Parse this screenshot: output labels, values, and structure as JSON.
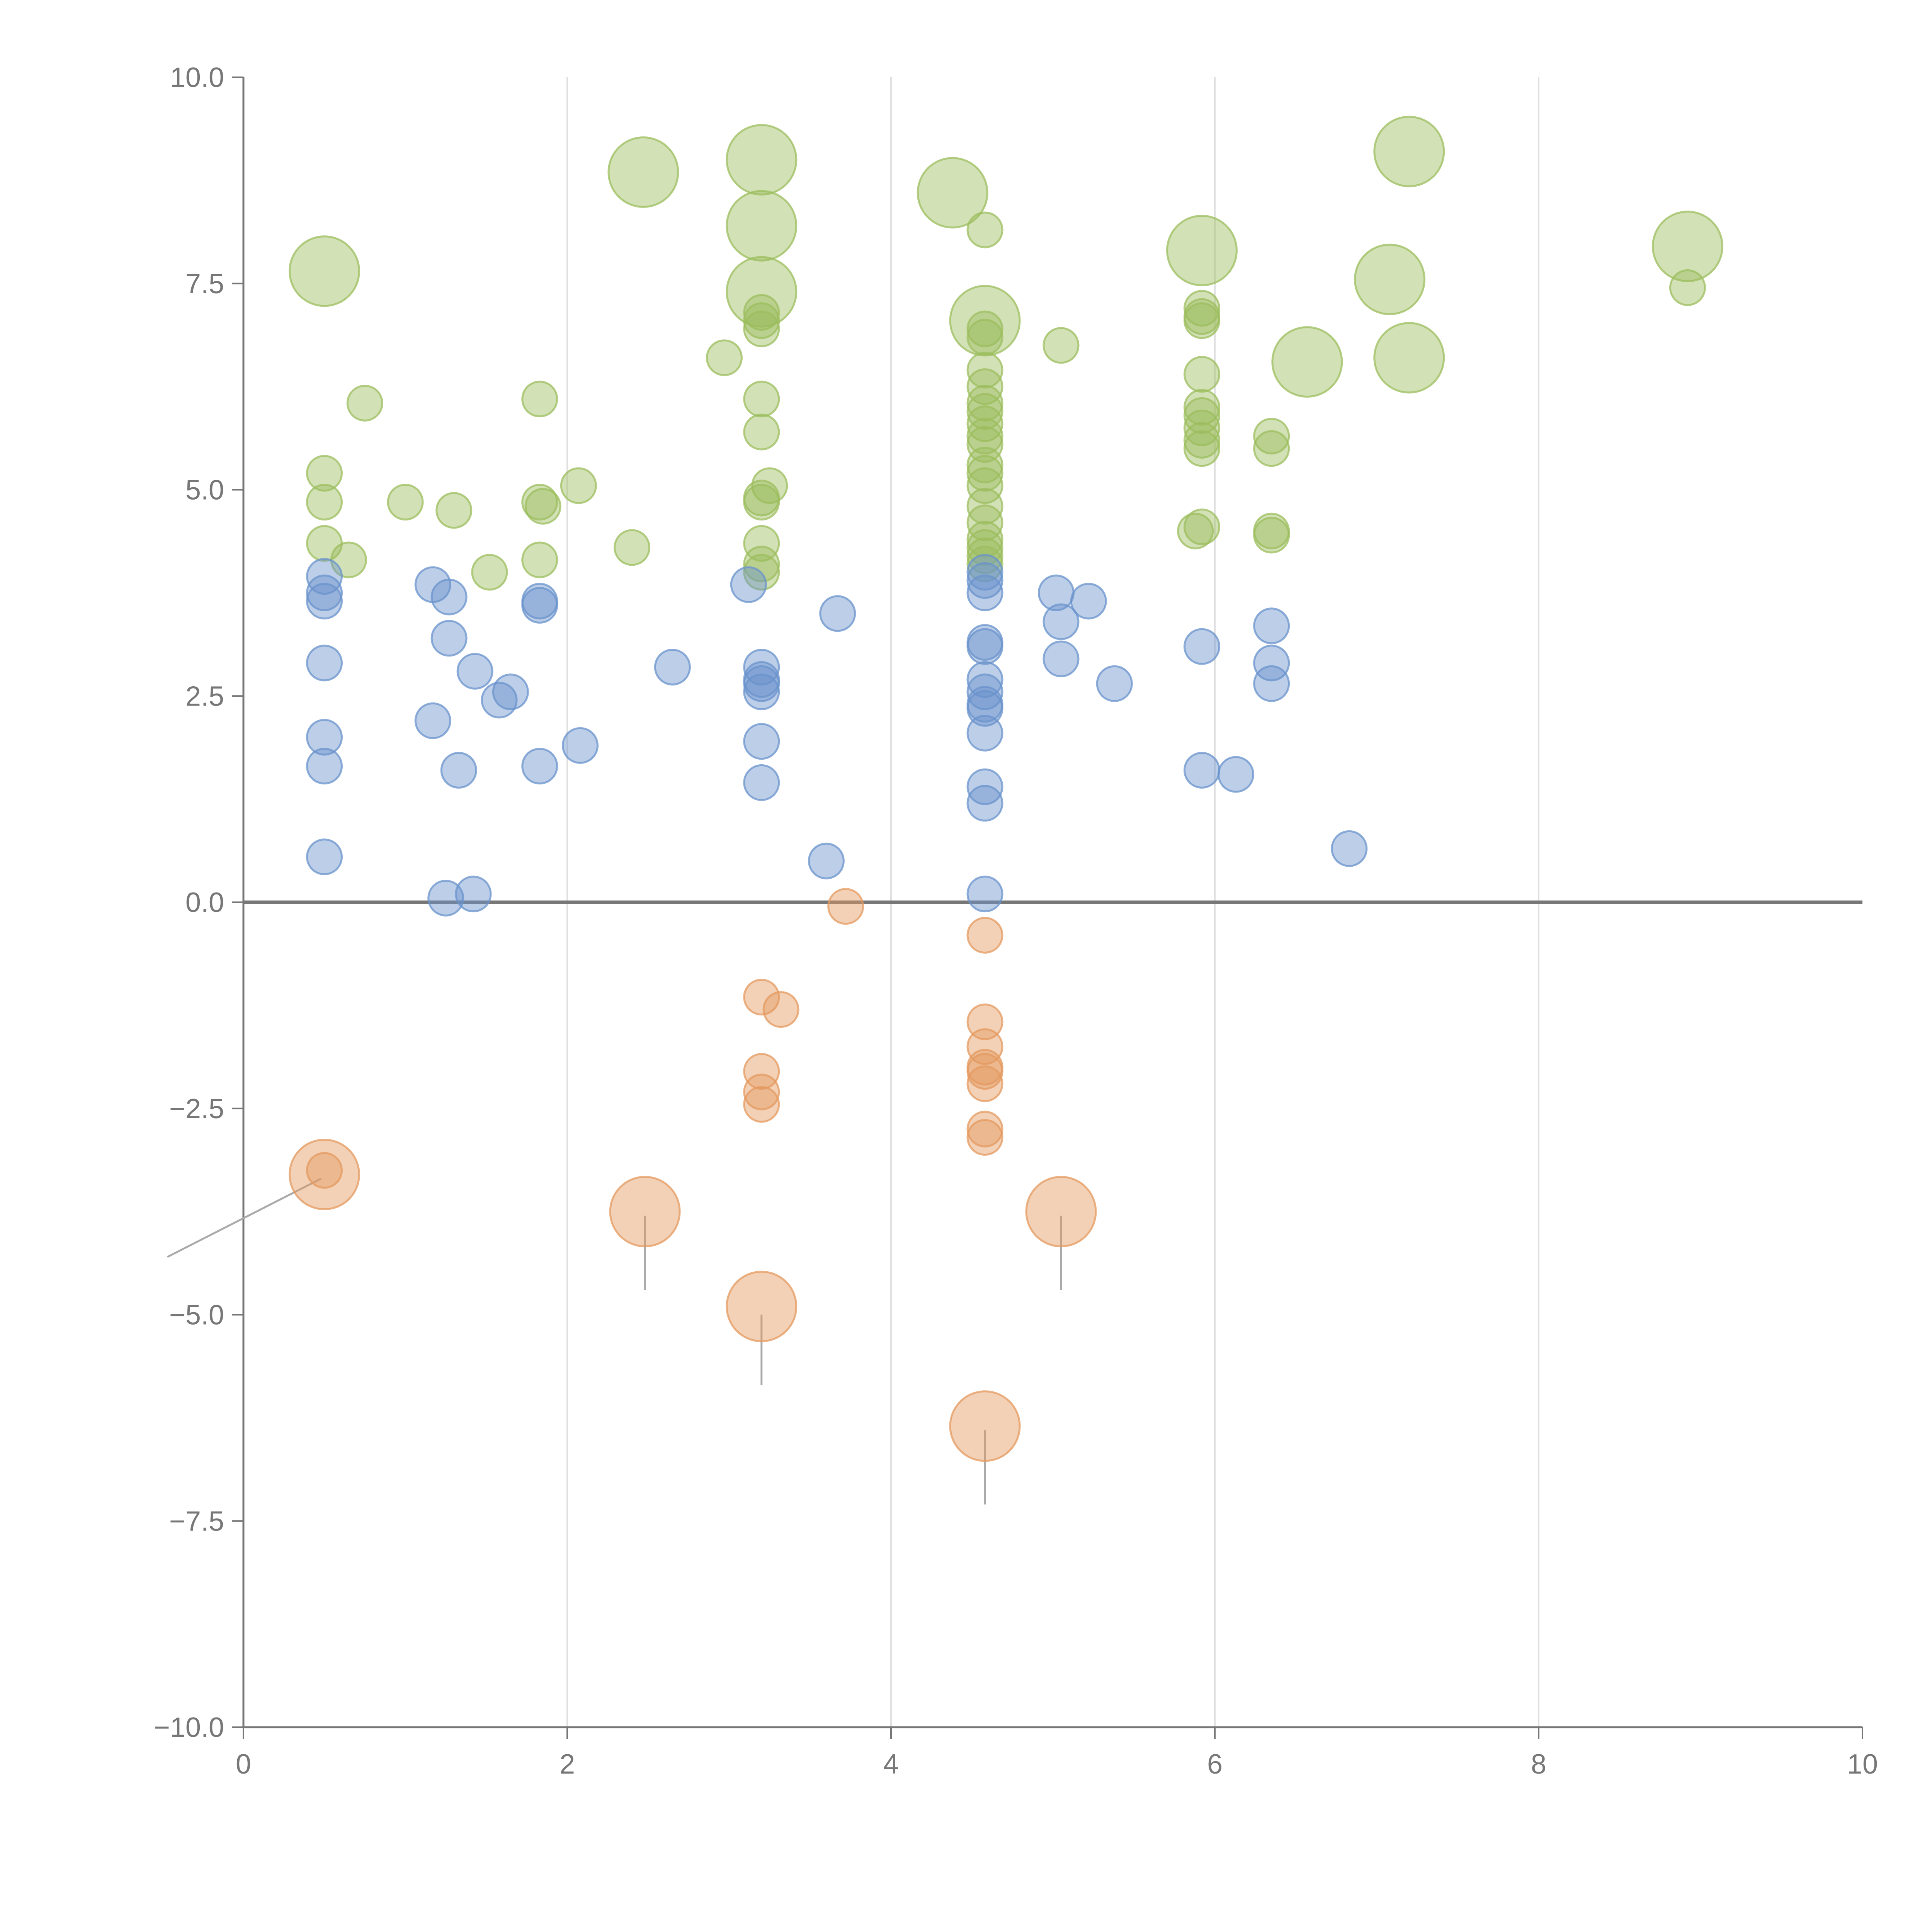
{
  "chart_data": {
    "type": "scatter",
    "title": "",
    "xlabel": "",
    "ylabel": "",
    "xlim": [
      0,
      10
    ],
    "ylim": [
      -10,
      10
    ],
    "grid": "vertical",
    "x_ticks": [
      0,
      2,
      4,
      6,
      8,
      10
    ],
    "x_tick_labels": [
      "0",
      "2",
      "4",
      "6",
      "8",
      "10"
    ],
    "y_ticks": [
      -10,
      -7.5,
      -5,
      -2.5,
      0,
      2.5,
      5,
      7.5,
      10
    ],
    "y_tick_labels": [
      "−10.0",
      "−7.5",
      "−5.0",
      "−2.5",
      "0.0",
      "2.5",
      "5.0",
      "7.5",
      "10.0"
    ],
    "reference_line_y": 0,
    "colors": {
      "green": "#9cbd5e",
      "blue": "#6a93cc",
      "orange": "#e49a5f",
      "axis": "#777777",
      "grid": "#e0e0e0"
    },
    "series": [
      {
        "name": "green",
        "color": "#9cbd5e",
        "points": [
          {
            "x": 0.5,
            "y": 7.65,
            "s": "large"
          },
          {
            "x": 2.47,
            "y": 8.85,
            "s": "large"
          },
          {
            "x": 3.2,
            "y": 9.0,
            "s": "large"
          },
          {
            "x": 3.2,
            "y": 8.2,
            "s": "large"
          },
          {
            "x": 3.2,
            "y": 7.4,
            "s": "large"
          },
          {
            "x": 4.38,
            "y": 8.6,
            "s": "large"
          },
          {
            "x": 4.58,
            "y": 7.05,
            "s": "large"
          },
          {
            "x": 5.92,
            "y": 7.9,
            "s": "large"
          },
          {
            "x": 6.57,
            "y": 6.55,
            "s": "large"
          },
          {
            "x": 7.08,
            "y": 7.55,
            "s": "large"
          },
          {
            "x": 7.2,
            "y": 9.1,
            "s": "large"
          },
          {
            "x": 7.2,
            "y": 6.6,
            "s": "large"
          },
          {
            "x": 8.92,
            "y": 7.95,
            "s": "large"
          },
          {
            "x": 0.75,
            "y": 6.05,
            "s": "small"
          },
          {
            "x": 0.5,
            "y": 5.2,
            "s": "small"
          },
          {
            "x": 0.5,
            "y": 4.85,
            "s": "small"
          },
          {
            "x": 0.5,
            "y": 4.35,
            "s": "small"
          },
          {
            "x": 0.65,
            "y": 4.15,
            "s": "small"
          },
          {
            "x": 1.0,
            "y": 4.85,
            "s": "small"
          },
          {
            "x": 1.3,
            "y": 4.75,
            "s": "small"
          },
          {
            "x": 1.52,
            "y": 4.0,
            "s": "small"
          },
          {
            "x": 1.83,
            "y": 6.1,
            "s": "small"
          },
          {
            "x": 1.83,
            "y": 4.85,
            "s": "small"
          },
          {
            "x": 1.85,
            "y": 4.8,
            "s": "small"
          },
          {
            "x": 1.83,
            "y": 4.15,
            "s": "small"
          },
          {
            "x": 2.07,
            "y": 5.05,
            "s": "small"
          },
          {
            "x": 2.4,
            "y": 4.3,
            "s": "small"
          },
          {
            "x": 2.97,
            "y": 6.6,
            "s": "small"
          },
          {
            "x": 3.2,
            "y": 7.15,
            "s": "small"
          },
          {
            "x": 3.2,
            "y": 7.05,
            "s": "small"
          },
          {
            "x": 3.2,
            "y": 6.95,
            "s": "small"
          },
          {
            "x": 3.2,
            "y": 6.1,
            "s": "small"
          },
          {
            "x": 3.2,
            "y": 5.7,
            "s": "small"
          },
          {
            "x": 3.25,
            "y": 5.05,
            "s": "small"
          },
          {
            "x": 3.2,
            "y": 4.9,
            "s": "small"
          },
          {
            "x": 3.2,
            "y": 4.85,
            "s": "small"
          },
          {
            "x": 3.2,
            "y": 4.35,
            "s": "small"
          },
          {
            "x": 3.2,
            "y": 4.1,
            "s": "small"
          },
          {
            "x": 3.2,
            "y": 4.0,
            "s": "small"
          },
          {
            "x": 4.58,
            "y": 8.15,
            "s": "small"
          },
          {
            "x": 4.58,
            "y": 6.95,
            "s": "small"
          },
          {
            "x": 4.58,
            "y": 6.85,
            "s": "small"
          },
          {
            "x": 4.58,
            "y": 6.45,
            "s": "small"
          },
          {
            "x": 4.58,
            "y": 6.25,
            "s": "small"
          },
          {
            "x": 4.58,
            "y": 6.05,
            "s": "small"
          },
          {
            "x": 4.58,
            "y": 5.95,
            "s": "small"
          },
          {
            "x": 4.58,
            "y": 5.8,
            "s": "small"
          },
          {
            "x": 4.58,
            "y": 5.65,
            "s": "small"
          },
          {
            "x": 4.58,
            "y": 5.55,
            "s": "small"
          },
          {
            "x": 4.58,
            "y": 5.3,
            "s": "small"
          },
          {
            "x": 4.58,
            "y": 5.2,
            "s": "small"
          },
          {
            "x": 4.58,
            "y": 5.05,
            "s": "small"
          },
          {
            "x": 4.58,
            "y": 4.8,
            "s": "small"
          },
          {
            "x": 4.58,
            "y": 4.6,
            "s": "small"
          },
          {
            "x": 4.58,
            "y": 4.4,
            "s": "small"
          },
          {
            "x": 4.58,
            "y": 4.3,
            "s": "small"
          },
          {
            "x": 4.58,
            "y": 4.2,
            "s": "small"
          },
          {
            "x": 4.58,
            "y": 4.1,
            "s": "small"
          },
          {
            "x": 5.05,
            "y": 6.75,
            "s": "small"
          },
          {
            "x": 5.92,
            "y": 7.2,
            "s": "small"
          },
          {
            "x": 5.92,
            "y": 7.1,
            "s": "small"
          },
          {
            "x": 5.92,
            "y": 7.05,
            "s": "small"
          },
          {
            "x": 5.92,
            "y": 6.4,
            "s": "small"
          },
          {
            "x": 5.92,
            "y": 6.0,
            "s": "small"
          },
          {
            "x": 5.92,
            "y": 5.9,
            "s": "small"
          },
          {
            "x": 5.92,
            "y": 5.75,
            "s": "small"
          },
          {
            "x": 5.92,
            "y": 5.6,
            "s": "small"
          },
          {
            "x": 5.92,
            "y": 5.5,
            "s": "small"
          },
          {
            "x": 5.92,
            "y": 4.55,
            "s": "small"
          },
          {
            "x": 5.88,
            "y": 4.5,
            "s": "small"
          },
          {
            "x": 6.35,
            "y": 5.65,
            "s": "small"
          },
          {
            "x": 6.35,
            "y": 5.5,
            "s": "small"
          },
          {
            "x": 6.35,
            "y": 4.5,
            "s": "small"
          },
          {
            "x": 6.35,
            "y": 4.45,
            "s": "small"
          },
          {
            "x": 8.92,
            "y": 7.45,
            "s": "small"
          }
        ]
      },
      {
        "name": "blue",
        "color": "#6a93cc",
        "points": [
          {
            "x": 0.5,
            "y": 3.95,
            "s": "small"
          },
          {
            "x": 0.5,
            "y": 3.75,
            "s": "small"
          },
          {
            "x": 0.5,
            "y": 3.65,
            "s": "small"
          },
          {
            "x": 0.5,
            "y": 2.9,
            "s": "small"
          },
          {
            "x": 0.5,
            "y": 2.0,
            "s": "small"
          },
          {
            "x": 0.5,
            "y": 1.65,
            "s": "small"
          },
          {
            "x": 0.5,
            "y": 0.55,
            "s": "small"
          },
          {
            "x": 1.17,
            "y": 3.85,
            "s": "small"
          },
          {
            "x": 1.27,
            "y": 3.7,
            "s": "small"
          },
          {
            "x": 1.27,
            "y": 3.2,
            "s": "small"
          },
          {
            "x": 1.43,
            "y": 2.8,
            "s": "small"
          },
          {
            "x": 1.65,
            "y": 2.55,
            "s": "small"
          },
          {
            "x": 1.58,
            "y": 2.45,
            "s": "small"
          },
          {
            "x": 1.17,
            "y": 2.2,
            "s": "small"
          },
          {
            "x": 1.33,
            "y": 1.6,
            "s": "small"
          },
          {
            "x": 1.25,
            "y": 0.05,
            "s": "small"
          },
          {
            "x": 1.42,
            "y": 0.1,
            "s": "small"
          },
          {
            "x": 1.83,
            "y": 3.65,
            "s": "small"
          },
          {
            "x": 1.83,
            "y": 3.6,
            "s": "small"
          },
          {
            "x": 1.83,
            "y": 1.65,
            "s": "small"
          },
          {
            "x": 2.08,
            "y": 1.9,
            "s": "small"
          },
          {
            "x": 2.65,
            "y": 2.85,
            "s": "small"
          },
          {
            "x": 3.12,
            "y": 3.85,
            "s": "small"
          },
          {
            "x": 3.2,
            "y": 2.85,
            "s": "small"
          },
          {
            "x": 3.2,
            "y": 2.7,
            "s": "small"
          },
          {
            "x": 3.2,
            "y": 2.65,
            "s": "small"
          },
          {
            "x": 3.2,
            "y": 2.55,
            "s": "small"
          },
          {
            "x": 3.2,
            "y": 1.95,
            "s": "small"
          },
          {
            "x": 3.2,
            "y": 1.45,
            "s": "small"
          },
          {
            "x": 3.6,
            "y": 0.5,
            "s": "small"
          },
          {
            "x": 3.67,
            "y": 3.5,
            "s": "small"
          },
          {
            "x": 4.58,
            "y": 4.0,
            "s": "small"
          },
          {
            "x": 4.58,
            "y": 3.9,
            "s": "small"
          },
          {
            "x": 4.58,
            "y": 3.75,
            "s": "small"
          },
          {
            "x": 4.58,
            "y": 3.15,
            "s": "small"
          },
          {
            "x": 4.58,
            "y": 3.1,
            "s": "small"
          },
          {
            "x": 4.58,
            "y": 2.7,
            "s": "small"
          },
          {
            "x": 4.58,
            "y": 2.55,
            "s": "small"
          },
          {
            "x": 4.58,
            "y": 2.4,
            "s": "small"
          },
          {
            "x": 4.58,
            "y": 2.35,
            "s": "small"
          },
          {
            "x": 4.58,
            "y": 2.05,
            "s": "small"
          },
          {
            "x": 4.58,
            "y": 1.4,
            "s": "small"
          },
          {
            "x": 4.58,
            "y": 1.2,
            "s": "small"
          },
          {
            "x": 4.58,
            "y": 0.1,
            "s": "small"
          },
          {
            "x": 5.02,
            "y": 3.75,
            "s": "small"
          },
          {
            "x": 5.05,
            "y": 3.4,
            "s": "small"
          },
          {
            "x": 5.05,
            "y": 2.95,
            "s": "small"
          },
          {
            "x": 5.22,
            "y": 3.65,
            "s": "small"
          },
          {
            "x": 5.38,
            "y": 2.65,
            "s": "small"
          },
          {
            "x": 5.92,
            "y": 3.1,
            "s": "small"
          },
          {
            "x": 5.92,
            "y": 1.6,
            "s": "small"
          },
          {
            "x": 6.13,
            "y": 1.55,
            "s": "small"
          },
          {
            "x": 6.35,
            "y": 3.35,
            "s": "small"
          },
          {
            "x": 6.35,
            "y": 2.9,
            "s": "small"
          },
          {
            "x": 6.35,
            "y": 2.65,
            "s": "small"
          },
          {
            "x": 6.83,
            "y": 0.65,
            "s": "small"
          }
        ]
      },
      {
        "name": "orange",
        "color": "#e49a5f",
        "points": [
          {
            "x": 0.5,
            "y": -3.3,
            "s": "large"
          },
          {
            "x": 2.48,
            "y": -3.75,
            "s": "large"
          },
          {
            "x": 3.2,
            "y": -4.9,
            "s": "large"
          },
          {
            "x": 4.58,
            "y": -6.35,
            "s": "large"
          },
          {
            "x": 5.05,
            "y": -3.75,
            "s": "large"
          },
          {
            "x": 0.5,
            "y": -3.25,
            "s": "small"
          },
          {
            "x": 3.72,
            "y": -0.05,
            "s": "small"
          },
          {
            "x": 3.2,
            "y": -1.15,
            "s": "small"
          },
          {
            "x": 3.32,
            "y": -1.3,
            "s": "small"
          },
          {
            "x": 3.2,
            "y": -2.05,
            "s": "small"
          },
          {
            "x": 3.2,
            "y": -2.3,
            "s": "small"
          },
          {
            "x": 3.2,
            "y": -2.45,
            "s": "small"
          },
          {
            "x": 4.58,
            "y": -0.4,
            "s": "small"
          },
          {
            "x": 4.58,
            "y": -1.45,
            "s": "small"
          },
          {
            "x": 4.58,
            "y": -1.75,
            "s": "small"
          },
          {
            "x": 4.58,
            "y": -2.0,
            "s": "small"
          },
          {
            "x": 4.58,
            "y": -2.05,
            "s": "small"
          },
          {
            "x": 4.58,
            "y": -2.2,
            "s": "small"
          },
          {
            "x": 4.58,
            "y": -2.75,
            "s": "small"
          },
          {
            "x": 4.58,
            "y": -2.85,
            "s": "small"
          }
        ]
      }
    ],
    "leader_lines": [
      {
        "x1": 0.48,
        "y1": -3.35,
        "x2": -0.47,
        "y2": -4.3
      },
      {
        "x1": 2.48,
        "y1": -3.8,
        "x2": 2.48,
        "y2": -4.7
      },
      {
        "x1": 3.2,
        "y1": -5.0,
        "x2": 3.2,
        "y2": -5.85
      },
      {
        "x1": 4.58,
        "y1": -6.4,
        "x2": 4.58,
        "y2": -7.3
      },
      {
        "x1": 5.05,
        "y1": -3.8,
        "x2": 5.05,
        "y2": -4.7
      }
    ]
  }
}
